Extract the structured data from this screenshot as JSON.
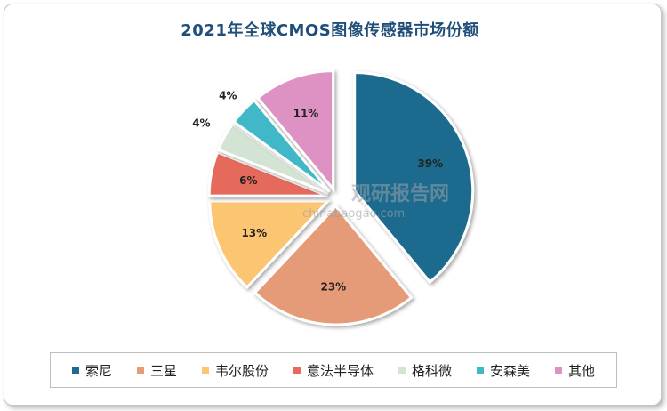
{
  "chart_data": {
    "type": "pie",
    "title": "2021年全球CMOS图像传感器市场份额",
    "exploded": true,
    "slices": [
      {
        "label": "索尼",
        "value": 39,
        "value_label": "39%",
        "color": "#1f6b8e"
      },
      {
        "label": "三星",
        "value": 23,
        "value_label": "23%",
        "color": "#e59a78"
      },
      {
        "label": "韦尔股份",
        "value": 13,
        "value_label": "13%",
        "color": "#fcc572"
      },
      {
        "label": "意法半导体",
        "value": 6,
        "value_label": "6%",
        "color": "#e66b5b"
      },
      {
        "label": "格科微",
        "value": 4,
        "value_label": "4%",
        "color": "#d4e4d4"
      },
      {
        "label": "安森美",
        "value": 4,
        "value_label": "4%",
        "color": "#3fb8c7"
      },
      {
        "label": "其他",
        "value": 11,
        "value_label": "11%",
        "color": "#de92c3"
      }
    ],
    "legend_position": "bottom"
  },
  "watermark": {
    "text": "观研报告网",
    "url_text": "chinabaogao.com"
  }
}
